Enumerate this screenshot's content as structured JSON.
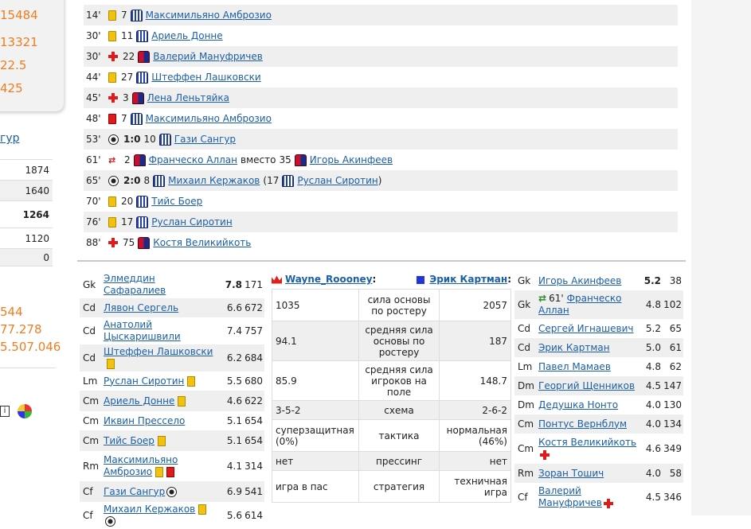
{
  "sidebar": {
    "numbers_top": [
      "15484",
      "13321",
      "22.5",
      "425"
    ],
    "link": "гур",
    "table_values": [
      "1874",
      "1640",
      "1264",
      "1120",
      "0"
    ],
    "numbers_bottom": [
      "544",
      "77.278",
      "5.507.046"
    ]
  },
  "events": [
    {
      "minute": "14'",
      "type": "yellow",
      "num": "7",
      "team": "blue",
      "player": "Максимильяно Амброзио"
    },
    {
      "minute": "30'",
      "type": "yellow",
      "num": "11",
      "team": "blue",
      "player": "Ариель Донне"
    },
    {
      "minute": "30'",
      "type": "injury",
      "num": "22",
      "team": "red",
      "player": "Валерий Мануфричев"
    },
    {
      "minute": "44'",
      "type": "yellow",
      "num": "27",
      "team": "blue",
      "player": "Штеффен Лашковски"
    },
    {
      "minute": "45'",
      "type": "injury",
      "num": "3",
      "team": "red",
      "player": "Лена Леньтяйка"
    },
    {
      "minute": "48'",
      "type": "red",
      "num": "7",
      "team": "blue",
      "player": "Максимильяно Амброзио"
    },
    {
      "minute": "53'",
      "type": "goal",
      "score": "1:0",
      "num": "10",
      "team": "blue",
      "player": "Гази Сангур"
    },
    {
      "minute": "61'",
      "type": "sub",
      "num": "2",
      "team": "red",
      "player": "Франческо Аллан",
      "mid": "вместо",
      "num2": "35",
      "team2": "red",
      "player2": "Игорь Акинфеев"
    },
    {
      "minute": "65'",
      "type": "goal",
      "score": "2:0",
      "num": "8",
      "team": "blue",
      "player": "Михаил Кержаков",
      "assist_prefix": "(17",
      "team2": "blue",
      "player2": "Руслан Сиротин",
      "assist_suffix": ")"
    },
    {
      "minute": "70'",
      "type": "yellow",
      "num": "20",
      "team": "blue",
      "player": "Тийс Боер"
    },
    {
      "minute": "76'",
      "type": "yellow",
      "num": "17",
      "team": "blue",
      "player": "Руслан Сиротин"
    },
    {
      "minute": "88'",
      "type": "injury",
      "num": "75",
      "team": "red",
      "player": "Костя Великийкоть"
    }
  ],
  "home_lineup": [
    {
      "pos": "Gk",
      "name": "Элмеддин Сафаралиев",
      "rating": "7.8",
      "bold": true,
      "power": "171",
      "marks": []
    },
    {
      "pos": "Cd",
      "name": "Лявон Сергель",
      "rating": "6.6",
      "power": "672",
      "marks": []
    },
    {
      "pos": "Cd",
      "name": "Анатолий Цыскаришвили",
      "rating": "7.4",
      "power": "757",
      "marks": []
    },
    {
      "pos": "Cd",
      "name": "Штеффен Лашковски",
      "rating": "6.2",
      "power": "684",
      "marks": [
        "yellow"
      ]
    },
    {
      "pos": "Lm",
      "name": "Руслан Сиротин",
      "rating": "5.5",
      "power": "680",
      "marks": [
        "yellow"
      ]
    },
    {
      "pos": "Cm",
      "name": "Ариель Донне",
      "rating": "4.6",
      "power": "622",
      "marks": [
        "yellow"
      ]
    },
    {
      "pos": "Cm",
      "name": "Иквин Прессело",
      "rating": "5.1",
      "power": "654",
      "marks": []
    },
    {
      "pos": "Cm",
      "name": "Тийс Боер",
      "rating": "5.1",
      "power": "654",
      "marks": [
        "yellow"
      ]
    },
    {
      "pos": "Rm",
      "name": "Максимильяно Амброзио",
      "rating": "4.1",
      "power": "314",
      "marks": [
        "yellow",
        "red"
      ]
    },
    {
      "pos": "Cf",
      "name": "Гази Сангур",
      "rating": "6.9",
      "power": "541",
      "marks": [
        "ball"
      ]
    },
    {
      "pos": "Cf",
      "name": "Михаил Кержаков",
      "rating": "5.6",
      "power": "614",
      "marks": [
        "yellow",
        "ball"
      ]
    }
  ],
  "away_lineup": [
    {
      "pos": "Gk",
      "name": "Игорь Акинфеев",
      "rating": "5.2",
      "bold": true,
      "power": "38",
      "marks": []
    },
    {
      "pos": "Gk",
      "name": "Франческо Аллан",
      "prefix": "61'",
      "rating": "4.8",
      "power": "102",
      "marks": [
        "sub"
      ]
    },
    {
      "pos": "Cd",
      "name": "Сергей Игнашевич",
      "rating": "5.2",
      "power": "65",
      "marks": []
    },
    {
      "pos": "Cd",
      "name": "Эрик Картман",
      "rating": "5.0",
      "power": "61",
      "marks": []
    },
    {
      "pos": "Lm",
      "name": "Павел Мамаев",
      "rating": "4.8",
      "power": "62",
      "marks": []
    },
    {
      "pos": "Dm",
      "name": "Георгий Щенников",
      "rating": "4.5",
      "power": "147",
      "marks": []
    },
    {
      "pos": "Dm",
      "name": "Дедушка Нонто",
      "rating": "4.0",
      "power": "130",
      "marks": []
    },
    {
      "pos": "Cm",
      "name": "Понтус Вернблум",
      "rating": "4.0",
      "power": "134",
      "marks": []
    },
    {
      "pos": "Cm",
      "name": "Костя Великийкоть",
      "rating": "4.6",
      "power": "349",
      "marks": [
        "injury"
      ]
    },
    {
      "pos": "Rm",
      "name": "Зоран Тошич",
      "rating": "4.0",
      "power": "58",
      "marks": []
    },
    {
      "pos": "Cf",
      "name": "Валерий Мануфричев",
      "rating": "4.5",
      "power": "346",
      "marks": [
        "injury"
      ]
    }
  ],
  "compare": {
    "home_manager": "Wayne_Roooney",
    "home_suffix": ":",
    "away_manager": "Эрик Картман",
    "away_suffix": ":",
    "rows": [
      {
        "home": "1035",
        "label": "сила основы по ростеру",
        "away": "2057"
      },
      {
        "home": "94.1",
        "label": "средняя сила основы по ростеру",
        "away": "187"
      },
      {
        "home": "85.9",
        "label": "средняя сила игроков на поле",
        "away": "148.7"
      },
      {
        "home": "3-5-2",
        "label": "схема",
        "away": "2-6-2"
      },
      {
        "home": "суперзащитная (0%)",
        "label": "тактика",
        "away": "нормальная (46%)"
      },
      {
        "home": "нет",
        "label": "прессинг",
        "away": "нет"
      },
      {
        "home": "игра в пас",
        "label": "стратегия",
        "away": "техничная игра"
      }
    ]
  }
}
